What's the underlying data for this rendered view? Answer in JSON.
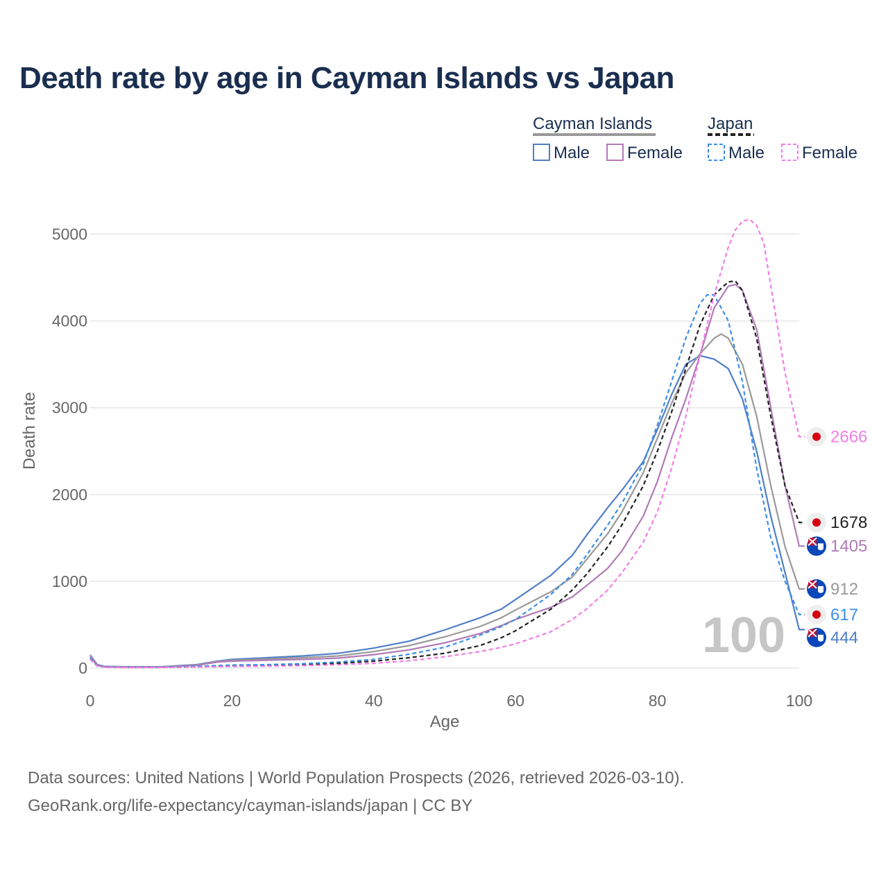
{
  "title": "Death rate by age in Cayman Islands vs Japan",
  "legend": {
    "groups": [
      {
        "name": "Cayman Islands",
        "line": "#999999",
        "dash": false,
        "items": [
          {
            "label": "Male",
            "color": "#4f7ec9"
          },
          {
            "label": "Female",
            "color": "#b07ab6"
          }
        ]
      },
      {
        "name": "Japan",
        "line": "#222222",
        "dash": true,
        "items": [
          {
            "label": "Male",
            "color": "#3b8ee6"
          },
          {
            "label": "Female",
            "color": "#f27ee6"
          }
        ]
      }
    ]
  },
  "chart_data": {
    "type": "line",
    "xlabel": "Age",
    "ylabel": "Death rate",
    "xlim": [
      0,
      100
    ],
    "ylim": [
      0,
      5300
    ],
    "xticks": [
      0,
      20,
      40,
      60,
      80,
      100
    ],
    "yticks": [
      0,
      1000,
      2000,
      3000,
      4000,
      5000
    ],
    "year_label": "100",
    "series": [
      {
        "name": "Cayman Islands Male",
        "color": "#4f7ec9",
        "dash": false,
        "end_label": "444",
        "flag": "cayman",
        "x": [
          0,
          1,
          2,
          5,
          10,
          15,
          18,
          20,
          25,
          30,
          35,
          40,
          45,
          50,
          55,
          58,
          60,
          65,
          68,
          70,
          73,
          75,
          78,
          80,
          82,
          84,
          86,
          88,
          90,
          92,
          94,
          96,
          98,
          100
        ],
        "y": [
          150,
          40,
          20,
          15,
          15,
          40,
          80,
          100,
          120,
          140,
          170,
          230,
          310,
          440,
          580,
          680,
          790,
          1070,
          1300,
          1530,
          1850,
          2050,
          2380,
          2750,
          3150,
          3500,
          3600,
          3560,
          3450,
          3100,
          2500,
          1750,
          1100,
          444
        ]
      },
      {
        "name": "Cayman Islands Total",
        "color": "#999999",
        "dash": false,
        "end_label": "912",
        "flag": "cayman",
        "x": [
          0,
          1,
          2,
          5,
          10,
          15,
          18,
          20,
          25,
          30,
          35,
          40,
          45,
          50,
          55,
          58,
          60,
          65,
          68,
          70,
          73,
          75,
          78,
          80,
          82,
          84,
          86,
          88,
          89,
          90,
          92,
          94,
          96,
          98,
          100
        ],
        "y": [
          140,
          35,
          18,
          14,
          14,
          35,
          75,
          90,
          105,
          120,
          140,
          190,
          260,
          360,
          480,
          580,
          670,
          880,
          1050,
          1250,
          1550,
          1800,
          2250,
          2650,
          3050,
          3400,
          3620,
          3800,
          3850,
          3800,
          3500,
          2900,
          2100,
          1400,
          912
        ]
      },
      {
        "name": "Cayman Islands Female",
        "color": "#b07ab6",
        "dash": false,
        "end_label": "1405",
        "flag": "cayman",
        "x": [
          0,
          1,
          2,
          5,
          10,
          15,
          18,
          20,
          25,
          30,
          35,
          40,
          45,
          50,
          55,
          58,
          60,
          65,
          68,
          70,
          73,
          75,
          78,
          80,
          82,
          84,
          86,
          88,
          90,
          91,
          92,
          94,
          96,
          98,
          100
        ],
        "y": [
          130,
          30,
          15,
          12,
          12,
          30,
          70,
          80,
          90,
          100,
          115,
          155,
          210,
          290,
          400,
          490,
          560,
          700,
          820,
          950,
          1150,
          1350,
          1750,
          2150,
          2650,
          3100,
          3600,
          4150,
          4400,
          4420,
          4350,
          3900,
          3000,
          2100,
          1405
        ]
      },
      {
        "name": "Japan Total",
        "color": "#222222",
        "dash": true,
        "end_label": "1678",
        "flag": "japan",
        "x": [
          0,
          1,
          2,
          5,
          10,
          15,
          20,
          25,
          30,
          35,
          40,
          45,
          50,
          55,
          58,
          60,
          65,
          68,
          70,
          73,
          75,
          78,
          80,
          82,
          84,
          86,
          88,
          90,
          91,
          92,
          94,
          96,
          98,
          100
        ],
        "y": [
          110,
          25,
          12,
          8,
          8,
          15,
          25,
          30,
          40,
          55,
          80,
          120,
          170,
          260,
          350,
          430,
          680,
          900,
          1080,
          1400,
          1650,
          2100,
          2500,
          2950,
          3450,
          3950,
          4300,
          4450,
          4460,
          4350,
          3800,
          2900,
          2100,
          1678
        ]
      },
      {
        "name": "Japan Male",
        "color": "#3b8ee6",
        "dash": true,
        "end_label": "617",
        "flag": "japan",
        "x": [
          0,
          1,
          2,
          5,
          10,
          15,
          20,
          25,
          30,
          35,
          40,
          45,
          50,
          55,
          58,
          60,
          65,
          68,
          70,
          73,
          75,
          78,
          80,
          82,
          84,
          86,
          87,
          88,
          90,
          92,
          94,
          96,
          98,
          100
        ],
        "y": [
          115,
          28,
          14,
          9,
          9,
          20,
          35,
          40,
          50,
          70,
          100,
          160,
          240,
          380,
          480,
          560,
          850,
          1080,
          1300,
          1650,
          1900,
          2350,
          2800,
          3300,
          3800,
          4200,
          4300,
          4300,
          4000,
          3300,
          2300,
          1500,
          1000,
          617
        ]
      },
      {
        "name": "Japan Female",
        "color": "#f27ee6",
        "dash": true,
        "end_label": "2666",
        "flag": "japan",
        "x": [
          0,
          1,
          2,
          5,
          10,
          15,
          20,
          25,
          30,
          35,
          40,
          45,
          50,
          55,
          58,
          60,
          65,
          68,
          70,
          73,
          75,
          78,
          80,
          82,
          84,
          86,
          88,
          90,
          91,
          92,
          93,
          94,
          95,
          96,
          98,
          100
        ],
        "y": [
          100,
          22,
          10,
          7,
          7,
          12,
          18,
          22,
          28,
          38,
          55,
          85,
          130,
          190,
          240,
          280,
          420,
          560,
          680,
          900,
          1100,
          1450,
          1800,
          2300,
          2900,
          3600,
          4300,
          4850,
          5050,
          5150,
          5170,
          5100,
          4900,
          4400,
          3400,
          2666
        ]
      }
    ]
  },
  "footer": {
    "source": "Data sources: United Nations | World Population Prospects (2026, retrieved 2026-03-10).",
    "credit": "GeoRank.org/life-expectancy/cayman-islands/japan | CC BY"
  }
}
